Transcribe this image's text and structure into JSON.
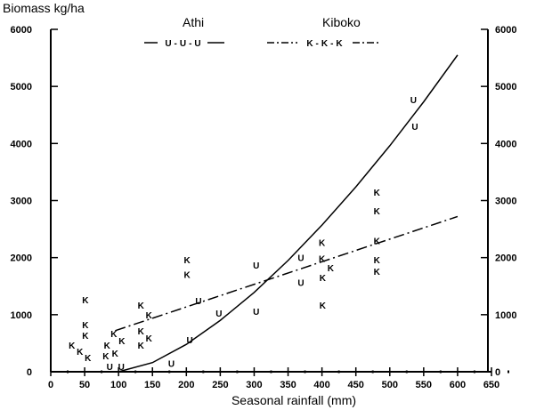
{
  "chart_data": {
    "type": "scatter",
    "title": "",
    "ylabel": "Biomass kg/ha",
    "xlabel": "Seasonal rainfall (mm)",
    "xlim": [
      0,
      650
    ],
    "ylim": [
      0,
      6000
    ],
    "xticks": [
      0,
      50,
      100,
      150,
      200,
      250,
      300,
      350,
      400,
      450,
      500,
      550,
      600,
      650
    ],
    "yticks": [
      0,
      1000,
      2000,
      3000,
      4000,
      5000,
      6000
    ],
    "grid": false,
    "legend_placement": "top",
    "series": [
      {
        "name": "Athi",
        "marker": "U",
        "line_style": "solid",
        "legend_sample": "U-U-U",
        "points": [
          [
            87,
            0
          ],
          [
            104,
            0
          ],
          [
            178,
            150
          ],
          [
            205,
            560
          ],
          [
            218,
            1250
          ],
          [
            248,
            1030
          ],
          [
            303,
            1870
          ],
          [
            303,
            1060
          ],
          [
            369,
            2000
          ],
          [
            369,
            1570
          ],
          [
            535,
            4770
          ],
          [
            537,
            4300
          ]
        ],
        "fit": [
          [
            100,
            0
          ],
          [
            150,
            160
          ],
          [
            200,
            480
          ],
          [
            250,
            900
          ],
          [
            300,
            1390
          ],
          [
            350,
            1950
          ],
          [
            400,
            2570
          ],
          [
            450,
            3240
          ],
          [
            500,
            3960
          ],
          [
            550,
            4730
          ],
          [
            600,
            5550
          ]
        ]
      },
      {
        "name": "Kiboko",
        "marker": "K",
        "line_style": "dash-dot",
        "legend_sample": "K-K-K",
        "points": [
          [
            51,
            1265
          ],
          [
            51,
            828
          ],
          [
            51,
            640
          ],
          [
            43,
            470
          ],
          [
            43,
            360
          ],
          [
            43,
            250
          ],
          [
            83,
            470
          ],
          [
            83,
            330
          ],
          [
            93,
            670
          ],
          [
            93,
            545
          ],
          [
            93,
            280
          ],
          [
            133,
            1170
          ],
          [
            133,
            1000
          ],
          [
            133,
            720
          ],
          [
            133,
            590
          ],
          [
            133,
            470
          ],
          [
            201,
            1960
          ],
          [
            201,
            1710
          ],
          [
            400,
            2270
          ],
          [
            400,
            1990
          ],
          [
            401,
            1820
          ],
          [
            401,
            1650
          ],
          [
            401,
            1170
          ],
          [
            481,
            3150
          ],
          [
            481,
            2820
          ],
          [
            481,
            2300
          ],
          [
            481,
            1960
          ],
          [
            481,
            1760
          ]
        ],
        "fit": [
          [
            95,
            720
          ],
          [
            600,
            2720
          ]
        ]
      }
    ]
  }
}
